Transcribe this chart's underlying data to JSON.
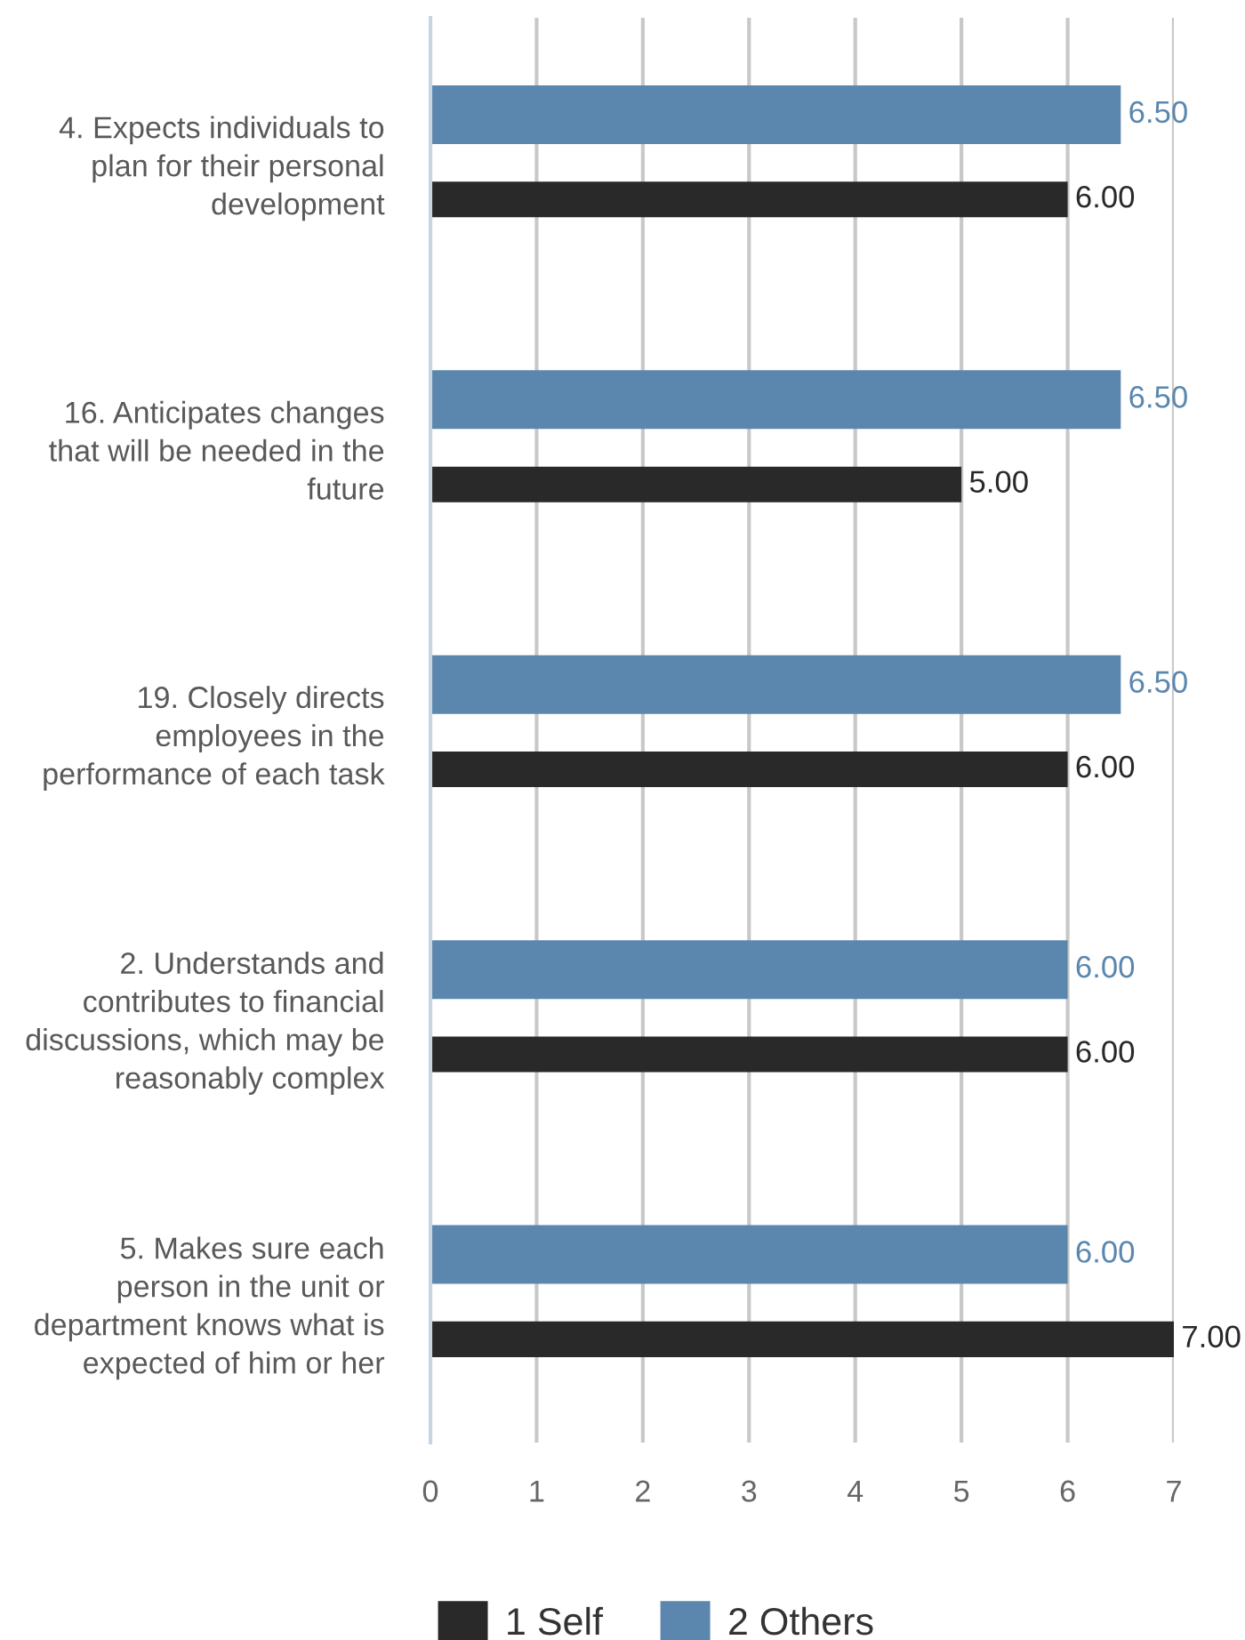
{
  "chart_data": {
    "type": "bar",
    "orientation": "horizontal",
    "categories": [
      "4. Expects individuals to\nplan for their personal\ndevelopment",
      "16. Anticipates changes\nthat will be needed in the\nfuture",
      "19. Closely directs\nemployees in the\nperformance of each task",
      "2. Understands and\ncontributes to financial\ndiscussions, which may be\nreasonably complex",
      "5. Makes sure each\nperson in the unit or\ndepartment knows what is\nexpected of him or her"
    ],
    "series": [
      {
        "name": "1 Self",
        "color": "#292929",
        "values": [
          6,
          5,
          6,
          6,
          7
        ],
        "value_labels": [
          "6.00",
          "5.00",
          "6.00",
          "6.00",
          "7.00"
        ]
      },
      {
        "name": "2 Others",
        "color": "#5b87ae",
        "values": [
          6.5,
          6.5,
          6.5,
          6,
          6
        ],
        "value_labels": [
          "6.50",
          "6.50",
          "6.50",
          "6.00",
          "6.00"
        ]
      }
    ],
    "xlim": [
      0,
      7
    ],
    "xticks": [
      0,
      1,
      2,
      3,
      4,
      5,
      6,
      7
    ],
    "grid": "x",
    "legend": "bottom"
  }
}
